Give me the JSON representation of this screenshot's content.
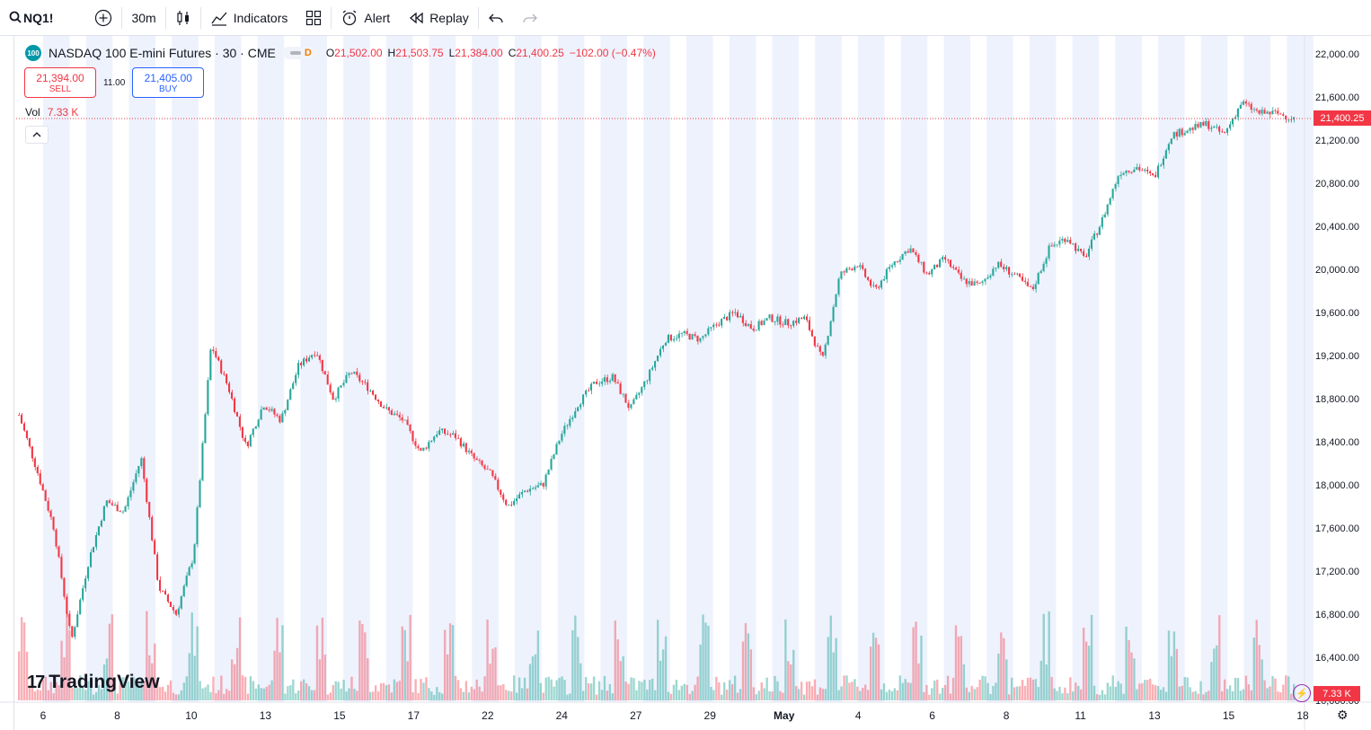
{
  "toolbar": {
    "symbol": "NQ1!",
    "interval": "30m",
    "indicators_label": "Indicators",
    "alert_label": "Alert",
    "replay_label": "Replay"
  },
  "legend": {
    "badge": "100",
    "title": "NASDAQ 100 E-mini Futures · 30 · CME",
    "session_badge": "D",
    "open_label": "O",
    "open": "21,502.00",
    "high_label": "H",
    "high": "21,503.75",
    "low_label": "L",
    "low": "21,384.00",
    "close_label": "C",
    "close": "21,400.25",
    "change": "−102.00 (−0.47%)"
  },
  "trade": {
    "sell_price": "21,394.00",
    "sell_label": "SELL",
    "spread": "11.00",
    "buy_price": "21,405.00",
    "buy_label": "BUY"
  },
  "volume_legend": {
    "label": "Vol",
    "value": "7.33 K"
  },
  "price_axis": {
    "current_price": "21,400.25",
    "volume_value": "7.33 K",
    "ticks": [
      "22,000.00",
      "21,600.00",
      "21,200.00",
      "20,800.00",
      "20,400.00",
      "20,000.00",
      "19,600.00",
      "19,200.00",
      "18,800.00",
      "18,400.00",
      "18,000.00",
      "17,600.00",
      "17,200.00",
      "16,800.00",
      "16,400.00",
      "16,000.00"
    ]
  },
  "time_axis": {
    "labels": [
      "6",
      "8",
      "10",
      "13",
      "15",
      "17",
      "22",
      "24",
      "27",
      "29",
      "May",
      "4",
      "6",
      "8",
      "11",
      "13",
      "15",
      "18"
    ]
  },
  "colors": {
    "up": "#26a69a",
    "down": "#f23645",
    "session_shade": "#eef2fd",
    "accent": "#2962ff"
  },
  "chart_data": {
    "type": "candlestick",
    "title": "NASDAQ 100 E-mini Futures · 30 · CME",
    "ylim": [
      16000,
      22000
    ],
    "x": [
      "6",
      "8",
      "10",
      "13",
      "15",
      "17",
      "22",
      "24",
      "27",
      "29",
      "May",
      "4",
      "6",
      "8",
      "11",
      "13",
      "15",
      "18"
    ],
    "close_path": [
      18650,
      18150,
      17600,
      16550,
      17300,
      17850,
      17750,
      18250,
      17050,
      16800,
      17350,
      19300,
      18900,
      18350,
      18750,
      18600,
      19100,
      19250,
      18800,
      19050,
      18900,
      18700,
      18600,
      18300,
      18500,
      18450,
      18250,
      18100,
      17800,
      17950,
      18000,
      18450,
      18750,
      18950,
      19000,
      18700,
      19000,
      19350,
      19400,
      19350,
      19500,
      19600,
      19450,
      19550,
      19500,
      19550,
      19150,
      19950,
      20050,
      19800,
      20050,
      20200,
      19950,
      20100,
      19900,
      19850,
      20050,
      19950,
      19800,
      20200,
      20300,
      20100,
      20450,
      20900,
      20950,
      20850,
      21250,
      21300,
      21350,
      21250,
      21550,
      21450,
      21450,
      21400
    ],
    "volume_last": 7330
  }
}
